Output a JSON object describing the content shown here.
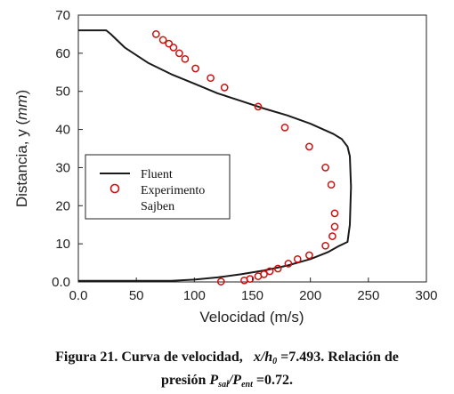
{
  "chart_data": {
    "type": "line",
    "xlabel": "Velocidad (m/s)",
    "ylabel_prefix": "Distancia, y (",
    "ylabel_unit": "mm",
    "ylabel_suffix": ")",
    "xlim": [
      0,
      300
    ],
    "ylim": [
      0,
      70
    ],
    "x_ticks": [
      "0.0",
      "50",
      "100",
      "150",
      "200",
      "250",
      "300"
    ],
    "y_ticks": [
      "0.0",
      "10",
      "20",
      "30",
      "40",
      "50",
      "60",
      "70"
    ],
    "grid": false,
    "legend_position": "center-left",
    "series": [
      {
        "name": "Fluent",
        "style": "line",
        "color": "#1a1a1a",
        "points": [
          [
            0,
            0.3
          ],
          [
            80,
            0.3
          ],
          [
            100,
            0.6
          ],
          [
            120,
            1.2
          ],
          [
            140,
            2
          ],
          [
            160,
            3
          ],
          [
            180,
            4.3
          ],
          [
            200,
            6
          ],
          [
            215,
            7.8
          ],
          [
            225,
            9.5
          ],
          [
            232,
            10.5
          ],
          [
            234,
            15
          ],
          [
            235,
            25
          ],
          [
            234,
            33
          ],
          [
            232,
            35.5
          ],
          [
            227,
            37.5
          ],
          [
            220,
            38.8
          ],
          [
            200,
            41.5
          ],
          [
            180,
            43.7
          ],
          [
            160,
            45.5
          ],
          [
            140,
            47.5
          ],
          [
            120,
            49.5
          ],
          [
            100,
            52
          ],
          [
            80,
            54.5
          ],
          [
            60,
            57.5
          ],
          [
            40,
            61.5
          ],
          [
            28,
            65
          ],
          [
            24,
            66
          ],
          [
            0,
            66
          ]
        ]
      },
      {
        "name": "Experimento Sajben",
        "style": "marker",
        "color": "#cc1111",
        "points": [
          [
            123,
            0.1
          ],
          [
            143,
            0.4
          ],
          [
            148,
            0.8
          ],
          [
            155,
            1.5
          ],
          [
            160,
            2
          ],
          [
            165,
            2.8
          ],
          [
            172,
            3.5
          ],
          [
            181,
            4.8
          ],
          [
            189,
            6
          ],
          [
            199,
            7
          ],
          [
            213,
            9.5
          ],
          [
            219,
            12
          ],
          [
            221,
            14.5
          ],
          [
            221,
            18
          ],
          [
            218,
            25.5
          ],
          [
            213,
            30
          ],
          [
            199,
            35.5
          ],
          [
            178,
            40.5
          ],
          [
            155,
            46
          ],
          [
            126,
            51
          ],
          [
            114,
            53.5
          ],
          [
            101,
            56
          ],
          [
            92,
            58.5
          ],
          [
            87,
            60
          ],
          [
            82,
            61.5
          ],
          [
            78,
            62.5
          ],
          [
            73,
            63.5
          ],
          [
            67,
            65
          ]
        ]
      }
    ],
    "legend": [
      "Fluent",
      "Experimento",
      "Sajben"
    ]
  },
  "caption": {
    "line1_a": "Figura 21. Curva de velocidad,",
    "var_x": "x",
    "slash": "/",
    "var_h": "h",
    "sub_0": "0",
    "line1_b": "=7.493. Relación de",
    "line2_a": "presión",
    "var_P1": "P",
    "sub_sal": "sal",
    "slash2": "/",
    "var_P2": "P",
    "sub_ent": "ent",
    "line2_b": "=0.72."
  }
}
